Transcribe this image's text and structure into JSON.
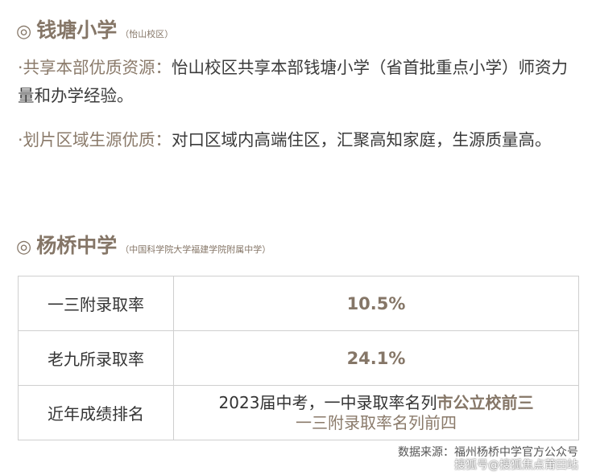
{
  "section1": {
    "icon": "◎",
    "title": "钱塘小学",
    "subtitle": "（怡山校区）",
    "items": [
      {
        "key": "·共享本部优质资源：",
        "text": "怡山校区共享本部钱塘小学（省首批重点小学）师资力量和办学经验。"
      },
      {
        "key": "·划片区域生源优质：",
        "text": "对口区域内高端住区，汇聚高知家庭，生源质量高。"
      }
    ]
  },
  "section2": {
    "icon": "◎",
    "title": "杨桥中学",
    "subtitle": "（中国科学院大学福建学院附属中学）"
  },
  "table": {
    "rows": [
      {
        "label": "一三附录取率",
        "value": "10.5%"
      },
      {
        "label": "老九所录取率",
        "value": "24.1%"
      },
      {
        "label": "近年成绩排名",
        "line1_prefix": "2023届中考，一中录取率名列",
        "line1_highlight": "市公立校前三",
        "line2": "一三附录取率名列前四"
      }
    ]
  },
  "source": "数据来源：福州杨桥中学官方公众号",
  "watermark": "搜狐号@搜狐焦点莆田站"
}
